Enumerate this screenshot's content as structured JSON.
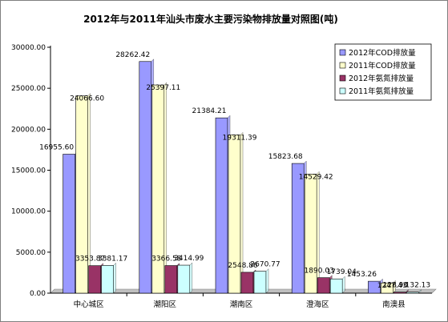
{
  "chart_data": {
    "type": "bar",
    "title": "2012年与2011年汕头市废水主要污染物排放量对照图(吨)",
    "categories": [
      "中心城区",
      "潮阳区",
      "潮南区",
      "澄海区",
      "南澳县"
    ],
    "ylim": [
      0,
      30000
    ],
    "yticks": [
      "0.00",
      "5000.00",
      "10000.00",
      "15000.00",
      "20000.00",
      "25000.00",
      "30000.00"
    ],
    "ytick_values": [
      0,
      5000,
      10000,
      15000,
      20000,
      25000,
      30000
    ],
    "grid": false,
    "legend_position": "right",
    "series": [
      {
        "name": "2012年COD排放量",
        "color": "#9999ff",
        "values": [
          16955.6,
          28262.42,
          21384.21,
          15823.68,
          1453.26
        ],
        "labels": [
          "16955.60",
          "28262.42",
          "21384.21",
          "15823.68",
          "1453.26"
        ]
      },
      {
        "name": "2011年COD排放量",
        "color": "#ffffcc",
        "values": [
          24066.6,
          25397.11,
          19311.39,
          14529.42,
          1247.43
        ],
        "labels": [
          "24066.60",
          "25397.11",
          "19311.39",
          "14529.42",
          "1247.43"
        ]
      },
      {
        "name": "2012年氨氮排放量",
        "color": "#993366",
        "values": [
          3353.87,
          3366.58,
          2548.86,
          1890.03,
          128.9
        ],
        "labels": [
          "3353.87",
          "3366.58",
          "2548.86",
          "1890.03",
          "128.90"
        ]
      },
      {
        "name": "2011年氨氮排放量",
        "color": "#ccffff",
        "values": [
          3381.17,
          3414.99,
          2670.77,
          1739.04,
          132.13
        ],
        "labels": [
          "3381.17",
          "3414.99",
          "2670.77",
          "1739.04",
          "132.13"
        ]
      }
    ]
  }
}
